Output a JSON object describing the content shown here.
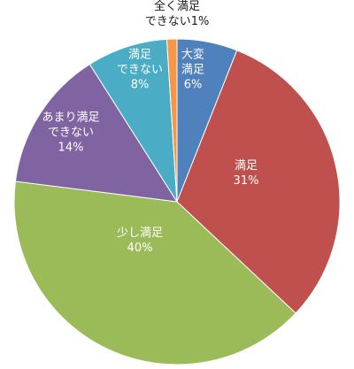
{
  "chart_data": {
    "type": "pie",
    "start_angle_deg": -90,
    "direction": "clockwise",
    "slices": [
      {
        "label_lines": [
          "大変",
          "満足"
        ],
        "percent_label": "6%",
        "value": 6,
        "color": "#4f81bd"
      },
      {
        "label_lines": [
          "満足"
        ],
        "percent_label": "31%",
        "value": 31,
        "color": "#c0504d"
      },
      {
        "label_lines": [
          "少し満足"
        ],
        "percent_label": "40%",
        "value": 40,
        "color": "#9bbb59"
      },
      {
        "label_lines": [
          "あまり満足",
          "できない"
        ],
        "percent_label": "14%",
        "value": 14,
        "color": "#8064a2"
      },
      {
        "label_lines": [
          "満足",
          "できない"
        ],
        "percent_label": "8%",
        "value": 8,
        "color": "#4bacc6"
      },
      {
        "label_lines": [
          "全く満足",
          "できない1%"
        ],
        "percent_label": "",
        "value": 1,
        "color": "#f79646"
      }
    ]
  }
}
